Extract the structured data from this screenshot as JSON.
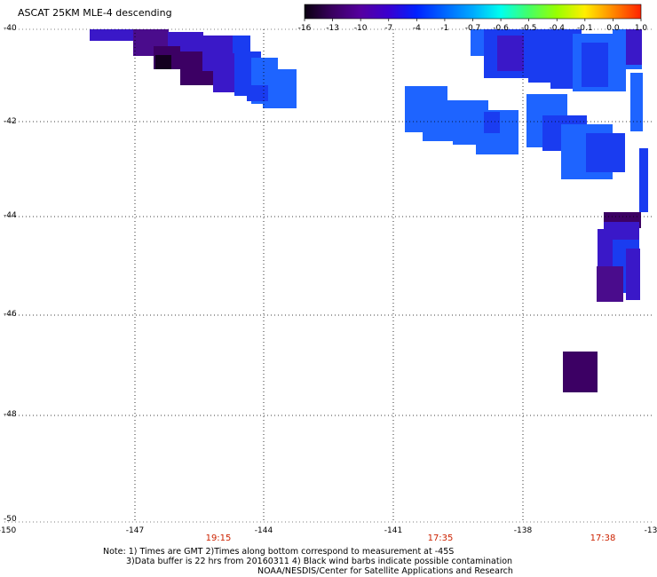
{
  "title": "ASCAT 25KM MLE-4 descending",
  "colorbar": {
    "tick_labels": [
      "-16",
      "-13",
      "-10",
      "-7",
      "-4",
      "-1",
      "-0.7",
      "-0.6",
      "-0.5",
      "-0.4",
      "-0.1",
      "0.0",
      "1.0"
    ],
    "colors": [
      "#0a0010",
      "#3a0060",
      "#5500a0",
      "#3a00d0",
      "#0022ff",
      "#0066ff",
      "#00aaff",
      "#00ffee",
      "#44ff66",
      "#99ff00",
      "#ffee00",
      "#ff8800",
      "#ff2200"
    ]
  },
  "map": {
    "lat_labels": [
      "-40",
      "-42",
      "-44",
      "-46",
      "-48",
      "-50"
    ],
    "lon_labels": [
      "-150",
      "-147",
      "-144",
      "-141",
      "-138",
      "-13"
    ],
    "pass_times": [
      "19:15",
      "17:35",
      "17:38"
    ]
  },
  "notes": {
    "line1": "Note: 1) Times are GMT 2)Times along bottom correspond to measurement at -45S",
    "line2": "3)Data buffer is 22 hrs from 20160311 4) Black wind barbs indicate possible contamination",
    "line3": "NOAA/NESDIS/Center for Satellite Applications and Research"
  },
  "palette": {
    "darkest": "#140020",
    "dark_purple": "#3c0064",
    "purple": "#4a0c8c",
    "indigo": "#3a18c8",
    "blue": "#1a3cf0",
    "bright_blue": "#1e64ff"
  }
}
